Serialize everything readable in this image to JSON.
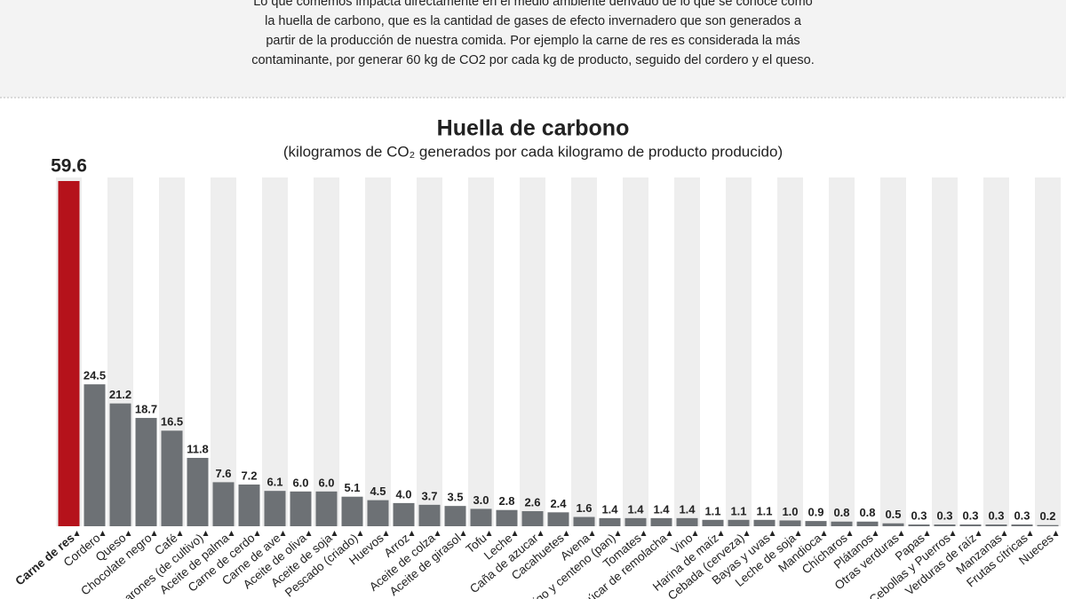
{
  "intro": [
    "Lo que comemos impacta directamente en el medio ambiente derivado de lo que se conoce como",
    "la huella de carbono, que es la cantidad de gases de efecto invernadero que son generados a",
    "partir de la producción de nuestra comida. Por ejemplo la carne de res es considerada la más",
    "contaminante, por generar 60 kg de CO2 por cada kg de producto, seguido del cordero y el queso."
  ],
  "chart_data": {
    "type": "bar",
    "title": "Huella de carbono",
    "subtitle": "(kilogramos de CO₂ generados por cada kilogramo de producto producido)",
    "categories": [
      "Carne de res",
      "Cordero",
      "Queso",
      "Chocolate negro",
      "Café",
      "Camarones (de cultivo)",
      "Aceite de palma",
      "Carne de cerdo",
      "Carne de ave",
      "Aceite de oliva",
      "Aceite de soja",
      "Pescado (criado)",
      "Huevos",
      "Arroz",
      "Aceite de colza",
      "Aceite de girasol",
      "Tofu",
      "Leche",
      "Caña de azucar",
      "Cacahuetes",
      "Avena",
      "Trigo y centeno (pan)",
      "Tomates",
      "Azúcar de remolacha",
      "Vino",
      "Harina de maíz",
      "Cebada (cerveza)",
      "Bayas y uvas",
      "Leche de soja",
      "Mandioca",
      "Chícharos",
      "Plátanos",
      "Otras verduras",
      "Papas",
      "Cebollas y Puerros",
      "Verduras de raíz",
      "Manzanas",
      "Frutas cítricas",
      "Nueces"
    ],
    "values": [
      59.6,
      24.5,
      21.2,
      18.7,
      16.5,
      11.8,
      7.6,
      7.2,
      6.1,
      6.0,
      6.0,
      5.1,
      4.5,
      4.0,
      3.7,
      3.5,
      3.0,
      2.8,
      2.6,
      2.4,
      1.6,
      1.4,
      1.4,
      1.4,
      1.4,
      1.1,
      1.1,
      1.1,
      1.0,
      0.9,
      0.8,
      0.8,
      0.5,
      0.3,
      0.3,
      0.3,
      0.3,
      0.3,
      0.2
    ],
    "value_labels": [
      "59.6",
      "24.5",
      "21.2",
      "18.7",
      "16.5",
      "11.8",
      "7.6",
      "7.2",
      "6.1",
      "6.0",
      "6.0",
      "5.1",
      "4.5",
      "4.0",
      "3.7",
      "3.5",
      "3.0",
      "2.8",
      "2.6",
      "2.4",
      "1.6",
      "1.4",
      "1.4",
      "1.4",
      "1.4",
      "1.1",
      "1.1",
      "1.1",
      "1.0",
      "0.9",
      "0.8",
      "0.8",
      "0.5",
      "0.3",
      "0.3",
      "0.3",
      "0.3",
      "0.3",
      "0.2"
    ],
    "colors": [
      "#b5121b",
      "#6d7175",
      "#6d7175",
      "#6d7175",
      "#6d7175",
      "#6d7175",
      "#6d7175",
      "#6d7175",
      "#6d7175",
      "#6d7175",
      "#6d7175",
      "#6d7175",
      "#6d7175",
      "#6d7175",
      "#6d7175",
      "#6d7175",
      "#6d7175",
      "#6d7175",
      "#6d7175",
      "#6d7175",
      "#6d7175",
      "#6d7175",
      "#6d7175",
      "#6d7175",
      "#6d7175",
      "#6d7175",
      "#6d7175",
      "#6d7175",
      "#6d7175",
      "#6d7175",
      "#6d7175",
      "#6d7175",
      "#6d7175",
      "#6d7175",
      "#6d7175",
      "#6d7175",
      "#6d7175",
      "#6d7175",
      "#6d7175"
    ]
  }
}
